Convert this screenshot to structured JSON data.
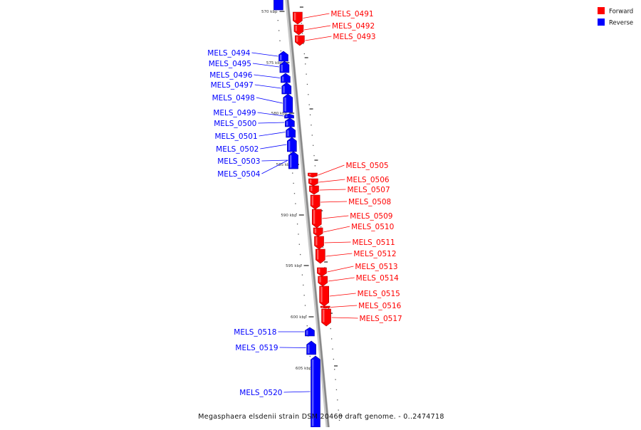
{
  "caption": "Megasphaera elsdenii strain DSM 20460 draft genome. - 0..2474718",
  "legend": [
    {
      "label": "Forward",
      "color": "#ff0000"
    },
    {
      "label": "Reverse",
      "color": "#0000ff"
    }
  ],
  "colors": {
    "forward": "#ff0000",
    "reverse": "#0000ff",
    "backbone": "#888888"
  },
  "ticks": [
    "570 kbp",
    "575 kbp",
    "580 kbp",
    "585 kbp",
    "590 kbp",
    "595 kbp",
    "600 kbp",
    "605 kbp"
  ],
  "genes": [
    {
      "name": "MELS_0491",
      "strand": "forward"
    },
    {
      "name": "MELS_0492",
      "strand": "forward"
    },
    {
      "name": "MELS_0493",
      "strand": "forward"
    },
    {
      "name": "MELS_0494",
      "strand": "reverse"
    },
    {
      "name": "MELS_0495",
      "strand": "reverse"
    },
    {
      "name": "MELS_0496",
      "strand": "reverse"
    },
    {
      "name": "MELS_0497",
      "strand": "reverse"
    },
    {
      "name": "MELS_0498",
      "strand": "reverse"
    },
    {
      "name": "MELS_0499",
      "strand": "reverse"
    },
    {
      "name": "MELS_0500",
      "strand": "reverse"
    },
    {
      "name": "MELS_0501",
      "strand": "reverse"
    },
    {
      "name": "MELS_0502",
      "strand": "reverse"
    },
    {
      "name": "MELS_0503",
      "strand": "reverse"
    },
    {
      "name": "MELS_0504",
      "strand": "reverse"
    },
    {
      "name": "MELS_0505",
      "strand": "forward"
    },
    {
      "name": "MELS_0506",
      "strand": "forward"
    },
    {
      "name": "MELS_0507",
      "strand": "forward"
    },
    {
      "name": "MELS_0508",
      "strand": "forward"
    },
    {
      "name": "MELS_0509",
      "strand": "forward"
    },
    {
      "name": "MELS_0510",
      "strand": "forward"
    },
    {
      "name": "MELS_0511",
      "strand": "forward"
    },
    {
      "name": "MELS_0512",
      "strand": "forward"
    },
    {
      "name": "MELS_0513",
      "strand": "forward"
    },
    {
      "name": "MELS_0514",
      "strand": "forward"
    },
    {
      "name": "MELS_0515",
      "strand": "forward"
    },
    {
      "name": "MELS_0516",
      "strand": "forward"
    },
    {
      "name": "MELS_0517",
      "strand": "forward"
    },
    {
      "name": "MELS_0518",
      "strand": "reverse"
    },
    {
      "name": "MELS_0519",
      "strand": "reverse"
    },
    {
      "name": "MELS_0520",
      "strand": "reverse"
    }
  ]
}
